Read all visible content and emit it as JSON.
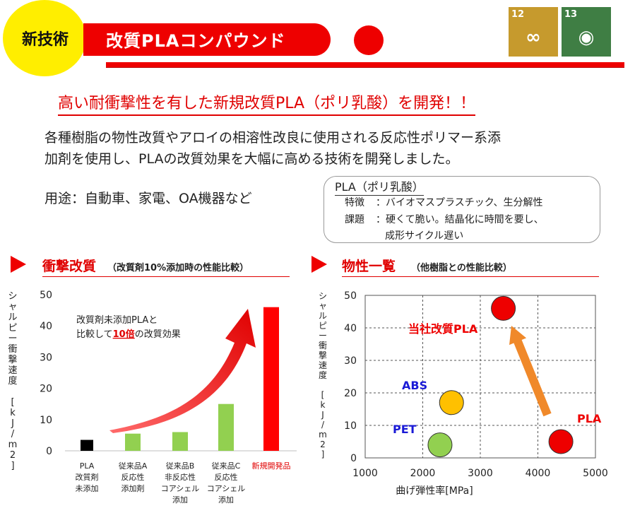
{
  "header": {
    "badge": "新技術",
    "title": "改質PLAコンパウンド",
    "sdg": [
      {
        "number": "12",
        "icon": "infinity-icon",
        "color": "#c69a2d"
      },
      {
        "number": "13",
        "icon": "globe-eye-icon",
        "color": "#3f7e44"
      }
    ]
  },
  "headline": "高い耐衝撃性を有した新規改質PLA（ポリ乳酸）を開発！！",
  "description": [
    "各種樹脂の物性改質やアロイの相溶性改良に使用される反応性ポリマー系添",
    "加剤を使用し、PLAの改質効果を大幅に高める技術を開発しました。"
  ],
  "usage": "用途：自動車、家電、OA機器など",
  "pla_box": {
    "title": "PLA（ポリ乳酸）",
    "rows": [
      {
        "label": "特徴",
        "text": "：バイオマスプラスチック、生分解性"
      },
      {
        "label": "課題",
        "text": "：硬くて脆い。結晶化に時間を要し、"
      },
      {
        "label": "",
        "text": "成形サイクル遅い"
      }
    ]
  },
  "section_left": {
    "title": "衝撃改質",
    "subtitle": "（改質剤10%添加時の性能比較）"
  },
  "section_right": {
    "title": "物性一覧",
    "subtitle": "（他樹脂との性能比較）"
  },
  "chart_data": [
    {
      "type": "bar",
      "ylabel": "シャルピー衝撃速度 [kJ/m2]",
      "ylim": [
        0,
        50
      ],
      "yticks": [
        0,
        10,
        20,
        30,
        40,
        50
      ],
      "grid": false,
      "categories": [
        [
          "PLA",
          "改質剤",
          "未添加"
        ],
        [
          "従来品A",
          "反応性",
          "添加剤"
        ],
        [
          "従来品B",
          "非反応性",
          "コアシェル",
          "添加"
        ],
        [
          "従来品C",
          "反応性",
          "コアシェル",
          "添加"
        ],
        [
          "新規開発品"
        ]
      ],
      "values": [
        3.5,
        5.5,
        6,
        15,
        46
      ],
      "colors": [
        "#000000",
        "#92d050",
        "#92d050",
        "#92d050",
        "#ff0000"
      ],
      "annotation": {
        "line1": "改質剤未添加PLAと",
        "line2_pre": "比較して",
        "line2_em": "10倍",
        "line2_post": "の改質効果"
      }
    },
    {
      "type": "scatter",
      "xlabel": "曲げ弾性率[MPa]",
      "ylabel": "シャルピー衝撃速度 [kJ/m2]",
      "xlim": [
        1000,
        5000
      ],
      "ylim": [
        0,
        50
      ],
      "xticks": [
        1000,
        2000,
        3000,
        4000,
        5000
      ],
      "yticks": [
        0,
        10,
        20,
        30,
        40,
        50
      ],
      "grid": true,
      "points": [
        {
          "label": "当社改質PLA",
          "x": 3400,
          "y": 46,
          "color": "#ee0000",
          "label_color": "#ee0000"
        },
        {
          "label": "ABS",
          "x": 2500,
          "y": 17,
          "color": "#ffc000",
          "label_color": "#1a1ad6"
        },
        {
          "label": "PET",
          "x": 2300,
          "y": 4,
          "color": "#92d050",
          "label_color": "#1a1ad6"
        },
        {
          "label": "PLA",
          "x": 4400,
          "y": 5,
          "color": "#ee0000",
          "label_color": "#ee0000"
        }
      ]
    }
  ]
}
